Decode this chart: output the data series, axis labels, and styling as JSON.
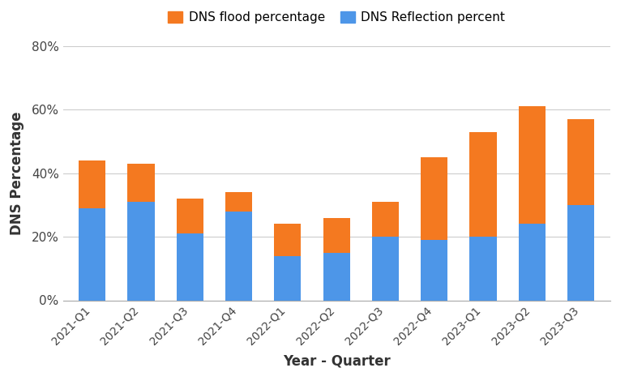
{
  "categories": [
    "2021-Q1",
    "2021-Q2",
    "2021-Q3",
    "2021-Q4",
    "2022-Q1",
    "2022-Q2",
    "2022-Q3",
    "2022-Q4",
    "2023-Q1",
    "2023-Q2",
    "2023-Q3"
  ],
  "reflection_values": [
    29,
    31,
    21,
    28,
    14,
    15,
    20,
    19,
    20,
    24,
    30
  ],
  "flood_values": [
    15,
    12,
    11,
    6,
    10,
    11,
    11,
    26,
    33,
    37,
    27
  ],
  "reflection_color": "#4D96E8",
  "flood_color": "#F47920",
  "legend_labels": [
    "DNS flood percentage",
    "DNS Reflection percent"
  ],
  "xlabel": "Year - Quarter",
  "ylabel": "DNS Percentage",
  "ylim": [
    0,
    80
  ],
  "yticks": [
    0,
    20,
    40,
    60,
    80
  ],
  "ytick_labels": [
    "0%",
    "20%",
    "40%",
    "60%",
    "80%"
  ],
  "background_color": "#ffffff",
  "grid_color": "#cccccc",
  "bar_width": 0.55
}
